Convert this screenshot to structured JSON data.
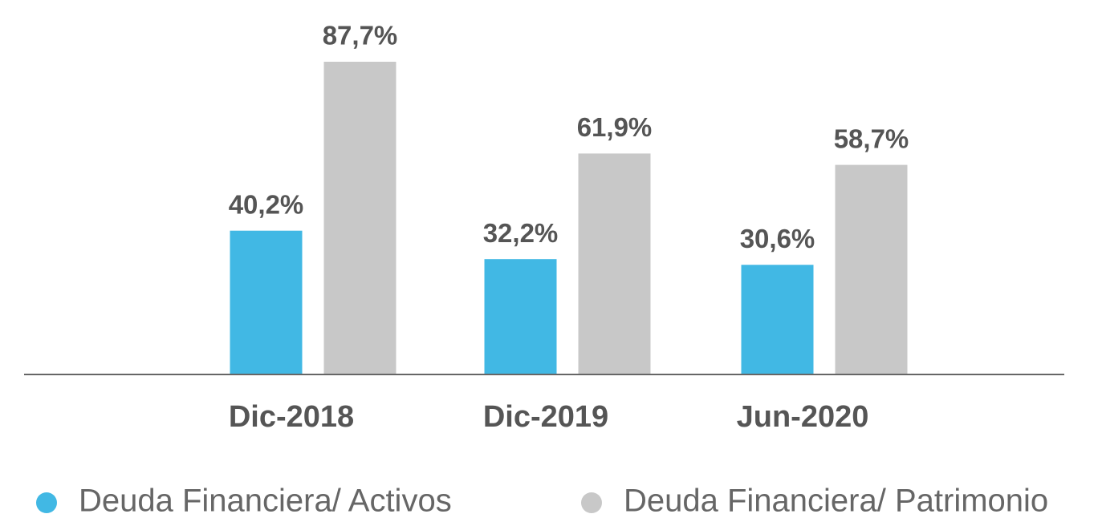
{
  "chart_data": {
    "type": "bar",
    "categories": [
      "Dic-2018",
      "Dic-2019",
      "Jun-2020"
    ],
    "series": [
      {
        "name": "Deuda Financiera/ Activos",
        "color": "#41b8e4",
        "values": [
          40.2,
          32.2,
          30.6
        ],
        "value_labels": [
          "40,2%",
          "32,2%",
          "30,6%"
        ]
      },
      {
        "name": "Deuda Financiera/ Patrimonio",
        "color": "#c8c8c8",
        "values": [
          87.7,
          61.9,
          58.7
        ],
        "value_labels": [
          "87,7%",
          "61,9%",
          "58,7%"
        ]
      }
    ],
    "legend": "bottom"
  }
}
